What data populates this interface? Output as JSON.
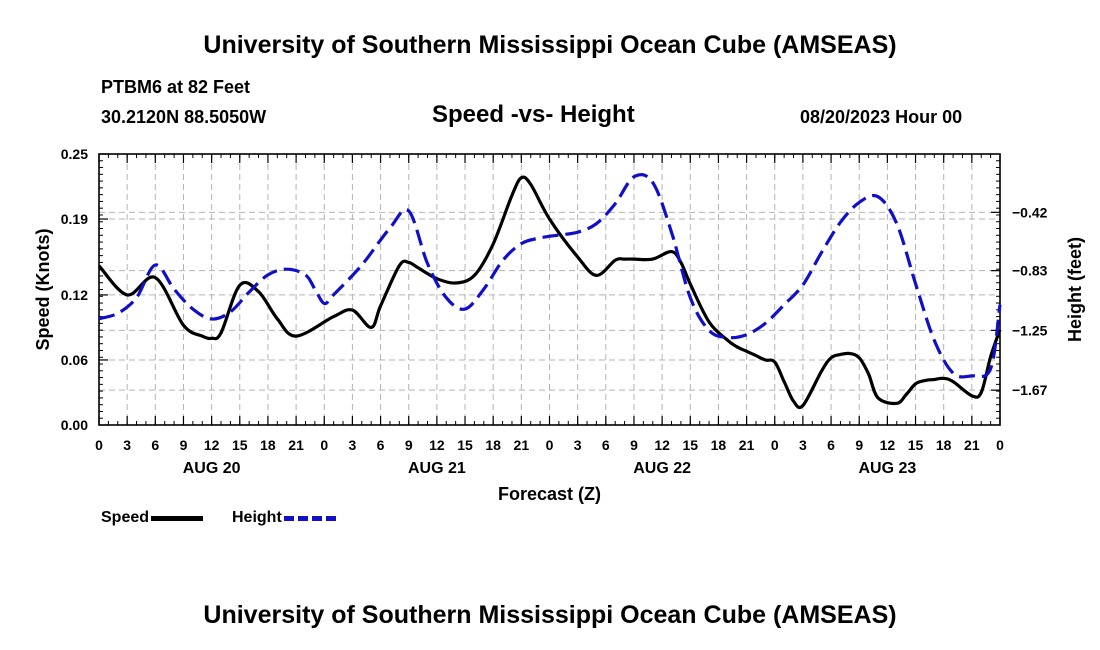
{
  "header": {
    "title_top": "University of Southern Mississippi Ocean Cube (AMSEAS)",
    "title_bottom": "University of Southern Mississippi Ocean Cube (AMSEAS)",
    "station": "PTBM6 at 82 Feet",
    "coords": "30.2120N  88.5050W",
    "subtitle": "Speed -vs- Height",
    "date": "08/20/2023 Hour 00"
  },
  "legend": {
    "speed_label": "Speed",
    "height_label": "Height",
    "speed_color": "#000000",
    "height_color": "#1010c8"
  },
  "chart_data": {
    "type": "line",
    "title": "Speed -vs- Height",
    "xlabel": "Forecast (Z)",
    "ylabel_left": "Speed (Knots)",
    "ylabel_right": "Height (feet)",
    "x_range_hours": [
      0,
      96
    ],
    "x_tick_labels": [
      "0",
      "3",
      "6",
      "9",
      "12",
      "15",
      "18",
      "21",
      "0",
      "3",
      "6",
      "9",
      "12",
      "15",
      "18",
      "21",
      "0",
      "3",
      "6",
      "9",
      "12",
      "15",
      "18",
      "21",
      "0",
      "3",
      "6",
      "9",
      "12",
      "15",
      "18",
      "21",
      "0"
    ],
    "date_labels": [
      {
        "hour": 12,
        "label": "AUG 20"
      },
      {
        "hour": 36,
        "label": "AUG 21"
      },
      {
        "hour": 60,
        "label": "AUG 22"
      },
      {
        "hour": 84,
        "label": "AUG 23"
      }
    ],
    "left_axis": {
      "ylim": [
        0,
        0.25
      ],
      "ticks": [
        "0.00",
        "0.06",
        "0.12",
        "0.19",
        "0.25"
      ]
    },
    "right_axis": {
      "ylim": [
        -1.915,
        -0.01
      ],
      "ticks": [
        "-0.42",
        "-0.83",
        "-1.25",
        "-1.67"
      ]
    },
    "grid": true,
    "series": [
      {
        "name": "Speed",
        "axis": "left",
        "color": "#000000",
        "style": "solid",
        "x": [
          0,
          3,
          6,
          9,
          11,
          12,
          13,
          15,
          17,
          19,
          21,
          25,
          27,
          29,
          30,
          32,
          33,
          34,
          36,
          38,
          40,
          42,
          44,
          45,
          46,
          48,
          51,
          53,
          55,
          56,
          57,
          59,
          61,
          62,
          63,
          65,
          67,
          68,
          69,
          70,
          71,
          72,
          73,
          74,
          75,
          77,
          78,
          79,
          80,
          81,
          82,
          83,
          85,
          86,
          87,
          88,
          89,
          90,
          91,
          93,
          94,
          95,
          96
        ],
        "values": [
          0.147,
          0.12,
          0.136,
          0.092,
          0.082,
          0.08,
          0.085,
          0.129,
          0.123,
          0.098,
          0.082,
          0.1,
          0.106,
          0.09,
          0.11,
          0.147,
          0.15,
          0.145,
          0.135,
          0.131,
          0.138,
          0.167,
          0.212,
          0.228,
          0.222,
          0.19,
          0.155,
          0.138,
          0.152,
          0.153,
          0.153,
          0.153,
          0.16,
          0.15,
          0.13,
          0.095,
          0.078,
          0.072,
          0.068,
          0.064,
          0.06,
          0.058,
          0.04,
          0.022,
          0.018,
          0.05,
          0.062,
          0.065,
          0.066,
          0.062,
          0.047,
          0.025,
          0.02,
          0.028,
          0.038,
          0.041,
          0.042,
          0.043,
          0.04,
          0.027,
          0.03,
          0.063,
          0.088
        ]
      },
      {
        "name": "Height",
        "axis": "right",
        "color": "#1010c8",
        "style": "dashed",
        "x": [
          0,
          2,
          4,
          6,
          8,
          10,
          12,
          14,
          16,
          18,
          20,
          22,
          23,
          24,
          25,
          28,
          31,
          33,
          35,
          37,
          39,
          41,
          43,
          45,
          47,
          49,
          51,
          53,
          55,
          57,
          59,
          61,
          63,
          65,
          67,
          69,
          71,
          73,
          75,
          77,
          79,
          81,
          83,
          85,
          87,
          89,
          91,
          93,
          95,
          96
        ],
        "values": [
          -1.168,
          -1.13,
          -1.02,
          -0.79,
          -0.96,
          -1.1,
          -1.17,
          -1.12,
          -0.98,
          -0.86,
          -0.82,
          -0.86,
          -0.96,
          -1.06,
          -1.0,
          -0.79,
          -0.53,
          -0.41,
          -0.78,
          -1.02,
          -1.1,
          -0.96,
          -0.76,
          -0.64,
          -0.6,
          -0.58,
          -0.56,
          -0.5,
          -0.36,
          -0.17,
          -0.21,
          -0.56,
          -1.02,
          -1.25,
          -1.3,
          -1.28,
          -1.2,
          -1.07,
          -0.93,
          -0.7,
          -0.49,
          -0.35,
          -0.31,
          -0.5,
          -0.92,
          -1.32,
          -1.55,
          -1.57,
          -1.52,
          -1.07
        ]
      }
    ]
  }
}
